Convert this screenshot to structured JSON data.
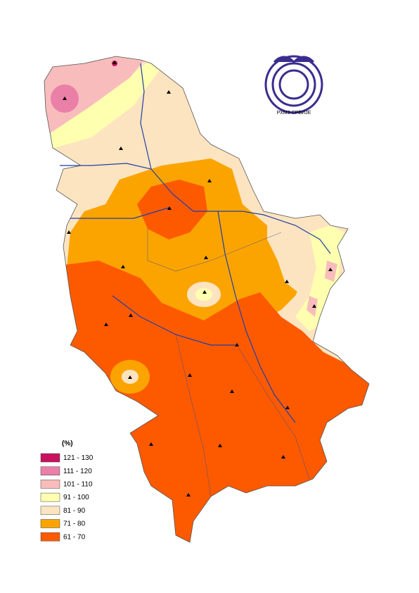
{
  "legend": {
    "title": "(%)",
    "items": [
      {
        "label": "121 - 130",
        "color": "#c8115f"
      },
      {
        "label": "111 - 120",
        "color": "#ea7fa8"
      },
      {
        "label": "101 - 110",
        "color": "#f9bcbc"
      },
      {
        "label": "91 - 100",
        "color": "#ffffb0"
      },
      {
        "label": "81 - 90",
        "color": "#fde4c0"
      },
      {
        "label": "71 - 80",
        "color": "#fba400"
      },
      {
        "label": "61 - 70",
        "color": "#fd5a00"
      }
    ]
  },
  "logo": {
    "caption": "РХМЗ СРБИЈЕ"
  }
}
